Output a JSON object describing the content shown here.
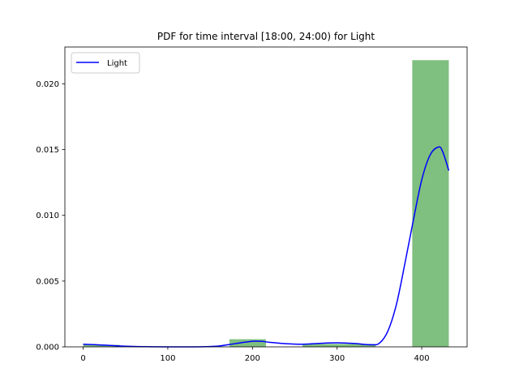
{
  "chart_data": {
    "type": "bar",
    "title": "PDF for time interval [18:00, 24:00) for Light",
    "xlabel": "",
    "ylabel": "",
    "xlim": [
      -21.6,
      453.6
    ],
    "ylim": [
      0,
      0.0228
    ],
    "x_ticks": [
      0,
      100,
      200,
      300,
      400
    ],
    "y_ticks": [
      0.0,
      0.005,
      0.01,
      0.015,
      0.02
    ],
    "x_tick_labels": [
      "0",
      "100",
      "200",
      "300",
      "400"
    ],
    "y_tick_labels": [
      "0.000",
      "0.005",
      "0.010",
      "0.015",
      "0.020"
    ],
    "grid": false,
    "legend_position": "top-left",
    "histogram": {
      "color": "#7fbf7f",
      "bin_edges": [
        0,
        43.2,
        86.4,
        129.6,
        172.8,
        216,
        259.2,
        302.4,
        345.6,
        388.8,
        432
      ],
      "values": [
        0.00015,
        0,
        0,
        0,
        0.00058,
        0,
        0.00022,
        0.00022,
        0,
        0.0218
      ]
    },
    "series": [
      {
        "name": "Light",
        "color": "#0000ff",
        "type": "line",
        "x": [
          0,
          20,
          40,
          60,
          80,
          100,
          120,
          140,
          160,
          180,
          200,
          210,
          220,
          240,
          260,
          280,
          300,
          320,
          340,
          350,
          360,
          370,
          380,
          390,
          400,
          410,
          420,
          425,
          432
        ],
        "y": [
          0.0002,
          0.00015,
          8e-05,
          3e-05,
          1e-05,
          0.0,
          0.0,
          1e-05,
          6e-05,
          0.00025,
          0.00042,
          0.00042,
          0.00035,
          0.00024,
          0.0002,
          0.00027,
          0.00031,
          0.00026,
          0.00016,
          0.00028,
          0.0012,
          0.0032,
          0.0063,
          0.0096,
          0.0127,
          0.0146,
          0.0152,
          0.0148,
          0.0134
        ]
      }
    ]
  }
}
